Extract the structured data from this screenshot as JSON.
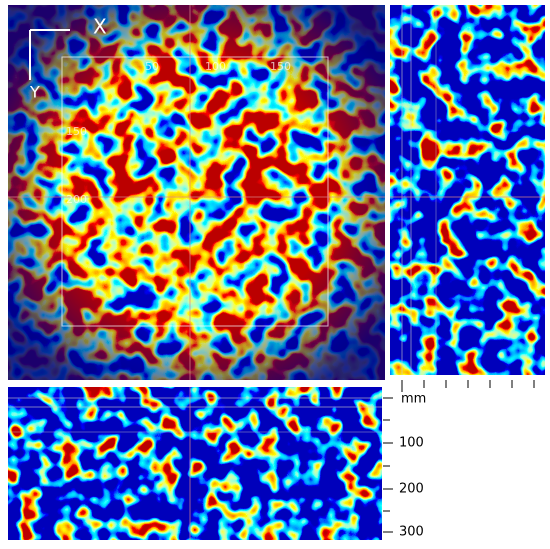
{
  "top_view": {
    "axis_labels": {
      "x": "X",
      "y": "Y"
    },
    "grid_labels": [
      "50",
      "100",
      "150",
      "150",
      "200"
    ]
  },
  "depth_scale": {
    "unit": "mm",
    "ticks": [
      "100",
      "200",
      "300"
    ]
  }
}
